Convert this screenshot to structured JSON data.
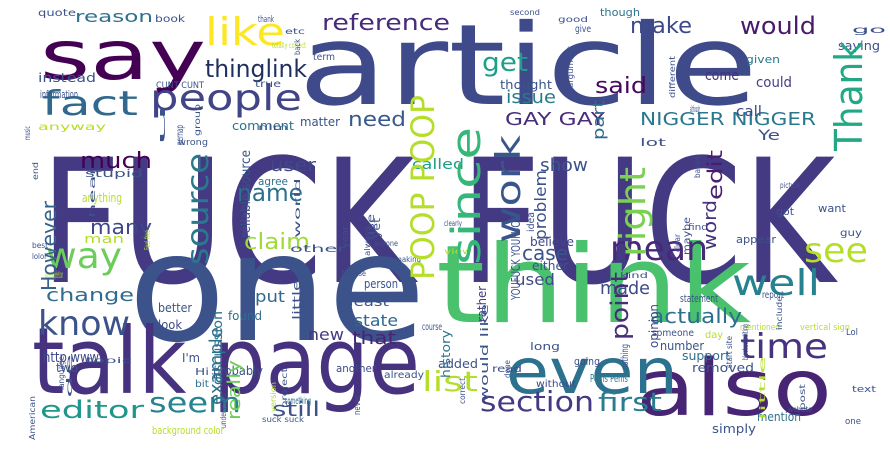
{
  "words": [
    {
      "text": "FUCK FUCK",
      "color": "#443983"
    },
    {
      "text": "article",
      "color": "#3e4a89"
    },
    {
      "text": "one",
      "color": "#3b528b"
    },
    {
      "text": "think",
      "color": "#4ac16d"
    },
    {
      "text": "talk page",
      "color": "#46327e"
    },
    {
      "text": "say",
      "color": "#440154"
    },
    {
      "text": "also",
      "color": "#482475"
    },
    {
      "text": "even",
      "color": "#2c728e"
    },
    {
      "text": "people",
      "color": "#414487"
    },
    {
      "text": "like",
      "color": "#fde725"
    },
    {
      "text": "fact",
      "color": "#31688e"
    },
    {
      "text": "know",
      "color": "#3b528b"
    },
    {
      "text": "well",
      "color": "#26828e"
    },
    {
      "text": "time",
      "color": "#46327e"
    },
    {
      "text": "see",
      "color": "#b5de2b"
    },
    {
      "text": "mean",
      "color": "#482878"
    },
    {
      "text": "Thank",
      "color": "#22a884"
    },
    {
      "text": "thinglink",
      "color": "#1f2f5f"
    },
    {
      "text": "reference",
      "color": "#472c7a"
    },
    {
      "text": "would",
      "color": "#481a6c"
    },
    {
      "text": "get",
      "color": "#1f9e89"
    },
    {
      "text": "said",
      "color": "#46085c"
    },
    {
      "text": "make",
      "color": "#3e4989"
    },
    {
      "text": "source",
      "color": "#2a788e"
    },
    {
      "text": "since",
      "color": "#35b779"
    },
    {
      "text": "work",
      "color": "#39568c"
    },
    {
      "text": "right",
      "color": "#7ad151"
    },
    {
      "text": "POOP POOP",
      "color": "#b5de2b"
    },
    {
      "text": "way",
      "color": "#6ccd5a"
    },
    {
      "text": "name",
      "color": "#2d708e"
    },
    {
      "text": "section",
      "color": "#443a83"
    },
    {
      "text": "first",
      "color": "#287d8e"
    },
    {
      "text": "editor",
      "color": "#1f968b"
    },
    {
      "text": "seem",
      "color": "#25848e"
    },
    {
      "text": "list",
      "color": "#b5de2b"
    },
    {
      "text": "GAY GAY",
      "color": "#472d7b"
    },
    {
      "text": "NIGGER NIGGER",
      "color": "#2a788e"
    },
    {
      "text": "need",
      "color": "#38598c"
    },
    {
      "text": "much",
      "color": "#440154"
    },
    {
      "text": "many",
      "color": "#3f4788"
    },
    {
      "text": "However",
      "color": "#33638d"
    },
    {
      "text": "change",
      "color": "#2f6c8e"
    },
    {
      "text": "claim",
      "color": "#a0da39"
    },
    {
      "text": "user",
      "color": "#3e4989"
    },
    {
      "text": "show",
      "color": "#3a548c"
    },
    {
      "text": "made",
      "color": "#3e4a89"
    },
    {
      "text": "actually",
      "color": "#2d708e"
    },
    {
      "text": "point",
      "color": "#472c7a"
    },
    {
      "text": "edit",
      "color": "#481f70"
    },
    {
      "text": "word",
      "color": "#46337f"
    },
    {
      "text": "case",
      "color": "#3b528b"
    },
    {
      "text": "issue",
      "color": "#287c8e"
    },
    {
      "text": "problem",
      "color": "#3b528b"
    },
    {
      "text": "part",
      "color": "#2f6b8e"
    },
    {
      "text": "still",
      "color": "#3b528b"
    },
    {
      "text": "really",
      "color": "#6ece58"
    },
    {
      "text": "example",
      "color": "#2c728e"
    },
    {
      "text": "state",
      "color": "#30698e"
    },
    {
      "text": "that",
      "color": "#482475"
    },
    {
      "text": "new",
      "color": "#443a83"
    },
    {
      "text": "used",
      "color": "#3e4a89"
    },
    {
      "text": "reason",
      "color": "#2d708e"
    },
    {
      "text": "called",
      "color": "#1fa088"
    },
    {
      "text": "comment",
      "color": "#2c728e"
    },
    {
      "text": "matter",
      "color": "#3a538b"
    },
    {
      "text": "thought",
      "color": "#39558c"
    },
    {
      "text": "come",
      "color": "#472f7d"
    },
    {
      "text": "could",
      "color": "#433e85"
    },
    {
      "text": "call",
      "color": "#3f4889"
    },
    {
      "text": "given",
      "color": "#2a778e"
    },
    {
      "text": "saying",
      "color": "#3d4e8a"
    },
    {
      "text": "though",
      "color": "#2b748e"
    },
    {
      "text": "put",
      "color": "#31688e"
    },
    {
      "text": "found",
      "color": "#2e6e8e"
    },
    {
      "text": "look",
      "color": "#3e4c8a"
    },
    {
      "text": "better",
      "color": "#3b528b"
    },
    {
      "text": "discussion",
      "color": "#2d718e"
    },
    {
      "text": "probably",
      "color": "#3c4f8a"
    },
    {
      "text": "http www",
      "color": "#3f4788"
    },
    {
      "text": "I'm",
      "color": "#3b528b"
    },
    {
      "text": "two",
      "color": "#3b528b"
    },
    {
      "text": "Hi",
      "color": "#3b528b"
    },
    {
      "text": "bit",
      "color": "#2e6f8e"
    },
    {
      "text": "history",
      "color": "#2c738e"
    },
    {
      "text": "rather",
      "color": "#453781"
    },
    {
      "text": "believe",
      "color": "#3e4989"
    },
    {
      "text": "either",
      "color": "#3b528b"
    },
    {
      "text": "yet",
      "color": "#3c4f8a"
    },
    {
      "text": "idea",
      "color": "#3b528b"
    },
    {
      "text": "opinion",
      "color": "#3e4a89"
    },
    {
      "text": "support",
      "color": "#2f6c8e"
    },
    {
      "text": "number",
      "color": "#3b528b"
    },
    {
      "text": "without",
      "color": "#3e4989"
    },
    {
      "text": "Penis Penis",
      "color": "#287d8e"
    },
    {
      "text": "removed",
      "color": "#3b528b"
    },
    {
      "text": "mention",
      "color": "#2e6f8e"
    },
    {
      "text": "simply",
      "color": "#3a538b"
    },
    {
      "text": "added",
      "color": "#3b528b"
    },
    {
      "text": "read",
      "color": "#3e4a89"
    },
    {
      "text": "going",
      "color": "#3c4f8a"
    },
    {
      "text": "long",
      "color": "#3b528b"
    },
    {
      "text": "nothing",
      "color": "#3b528b"
    },
    {
      "text": "another",
      "color": "#3e4a89"
    },
    {
      "text": "already",
      "color": "#3b528b"
    },
    {
      "text": "little",
      "color": "#3b528b"
    },
    {
      "text": "person",
      "color": "#3b528b"
    },
    {
      "text": "least",
      "color": "#3b528b"
    },
    {
      "text": "something",
      "color": "#2e6e8e"
    },
    {
      "text": "instead",
      "color": "#3b528b"
    },
    {
      "text": "information",
      "color": "#3b528b"
    },
    {
      "text": "anyway",
      "color": "#b5de2b"
    },
    {
      "text": "quote",
      "color": "#3b528b"
    },
    {
      "text": "book",
      "color": "#3b528b"
    },
    {
      "text": "true",
      "color": "#3b528b"
    },
    {
      "text": "term",
      "color": "#3b528b"
    },
    {
      "text": "lot",
      "color": "#3b528b"
    },
    {
      "text": "give",
      "color": "#3b528b"
    },
    {
      "text": "use",
      "color": "#3b528b"
    },
    {
      "text": "course",
      "color": "#3b528b"
    },
    {
      "text": "statement",
      "color": "#3b528b"
    },
    {
      "text": "other",
      "color": "#3b528b"
    },
    {
      "text": "agree",
      "color": "#2e6e8e"
    },
    {
      "text": "anything",
      "color": "#b5de2b"
    },
    {
      "text": "stupid",
      "color": "#3b528b"
    },
    {
      "text": "man",
      "color": "#b5de2b"
    },
    {
      "text": "speedy deletion",
      "color": "#b5de2b"
    },
    {
      "text": "background color",
      "color": "#b5de2b"
    },
    {
      "text": "reliable source",
      "color": "#3b528b"
    },
    {
      "text": "YOUFUCK YOUFUCK",
      "color": "#3b528b"
    },
    {
      "text": "would like",
      "color": "#3b528b"
    },
    {
      "text": "Ye",
      "color": "#3b528b"
    },
    {
      "text": "got",
      "color": "#3b528b"
    },
    {
      "text": "want",
      "color": "#3b528b"
    },
    {
      "text": "guy",
      "color": "#3b528b"
    },
    {
      "text": "appear",
      "color": "#3b528b"
    },
    {
      "text": "maybe",
      "color": "#3b528b"
    },
    {
      "text": "someone",
      "color": "#3b528b"
    },
    {
      "text": "day",
      "color": "#b5de2b"
    },
    {
      "text": "u",
      "color": "#3b528b"
    },
    {
      "text": "CUNT CUNT",
      "color": "#3b528b"
    },
    {
      "text": "wrong",
      "color": "#3b528b"
    },
    {
      "text": "argument",
      "color": "#3b528b"
    },
    {
      "text": "different",
      "color": "#3b528b"
    },
    {
      "text": "although",
      "color": "#3b528b"
    },
    {
      "text": "go",
      "color": "#3b528b"
    },
    {
      "text": "pernap",
      "color": "#3b528b"
    },
    {
      "text": "back",
      "color": "#3b528b"
    },
    {
      "text": "thank",
      "color": "#3b528b"
    },
    {
      "text": "etc",
      "color": "#3b528b"
    },
    {
      "text": "good",
      "color": "#3b528b"
    },
    {
      "text": "second",
      "color": "#3b528b"
    },
    {
      "text": "project",
      "color": "#3b528b"
    },
    {
      "text": "version",
      "color": "#b5de2b"
    },
    {
      "text": "correct",
      "color": "#3b528b"
    },
    {
      "text": "never",
      "color": "#3b528b"
    },
    {
      "text": "post",
      "color": "#3b528b"
    },
    {
      "text": "group",
      "color": "#3b528b"
    },
    {
      "text": "Feel free",
      "color": "#b5de2b"
    },
    {
      "text": "language",
      "color": "#3b528b"
    },
    {
      "text": "topic",
      "color": "#3b528b"
    },
    {
      "text": "American",
      "color": "#3b528b"
    },
    {
      "text": "understand",
      "color": "#3b528b"
    },
    {
      "text": "suck suck",
      "color": "#3b528b"
    },
    {
      "text": "text",
      "color": "#3b528b"
    },
    {
      "text": "clear",
      "color": "#3b528b"
    },
    {
      "text": "year",
      "color": "#3b528b"
    },
    {
      "text": "find",
      "color": "#3b528b"
    },
    {
      "text": "always",
      "color": "#3b528b"
    },
    {
      "text": "anyone",
      "color": "#3b528b"
    },
    {
      "text": "making",
      "color": "#3b528b"
    },
    {
      "text": "view",
      "color": "#b5de2b"
    },
    {
      "text": "kind",
      "color": "#3b528b"
    },
    {
      "text": "report",
      "color": "#3b528b"
    },
    {
      "text": "picture",
      "color": "#3b528b"
    },
    {
      "text": "website",
      "color": "#3b528b"
    },
    {
      "text": "include",
      "color": "#3b528b"
    },
    {
      "text": "blocked editing",
      "color": "#3b528b"
    },
    {
      "text": "start site",
      "color": "#3b528b"
    },
    {
      "text": "little",
      "color": "#b5de2b"
    },
    {
      "text": "vertical sign",
      "color": "#b5de2b"
    },
    {
      "text": "mentioned",
      "color": "#b5de2b"
    },
    {
      "text": "Lol",
      "color": "#3b528b"
    },
    {
      "text": "hear",
      "color": "#3b528b"
    },
    {
      "text": "de",
      "color": "#3b528b"
    },
    {
      "text": "music",
      "color": "#3b528b"
    },
    {
      "text": "end",
      "color": "#3b528b"
    },
    {
      "text": "best",
      "color": "#3b528b"
    },
    {
      "text": "lolol",
      "color": "#3b528b"
    },
    {
      "text": "one",
      "color": "#3b528b"
    },
    {
      "text": "based",
      "color": "#3b528b"
    },
    {
      "text": "done",
      "color": "#3b528b"
    },
    {
      "text": "fair use",
      "color": "#3b528b"
    },
    {
      "text": "clearly",
      "color": "#3b528b"
    },
    {
      "text": "totally correct",
      "color": "#b5de2b"
    },
    {
      "text": "nlm",
      "color": "#3b528b"
    },
    {
      "text": "world",
      "color": "#3b528b"
    }
  ]
}
